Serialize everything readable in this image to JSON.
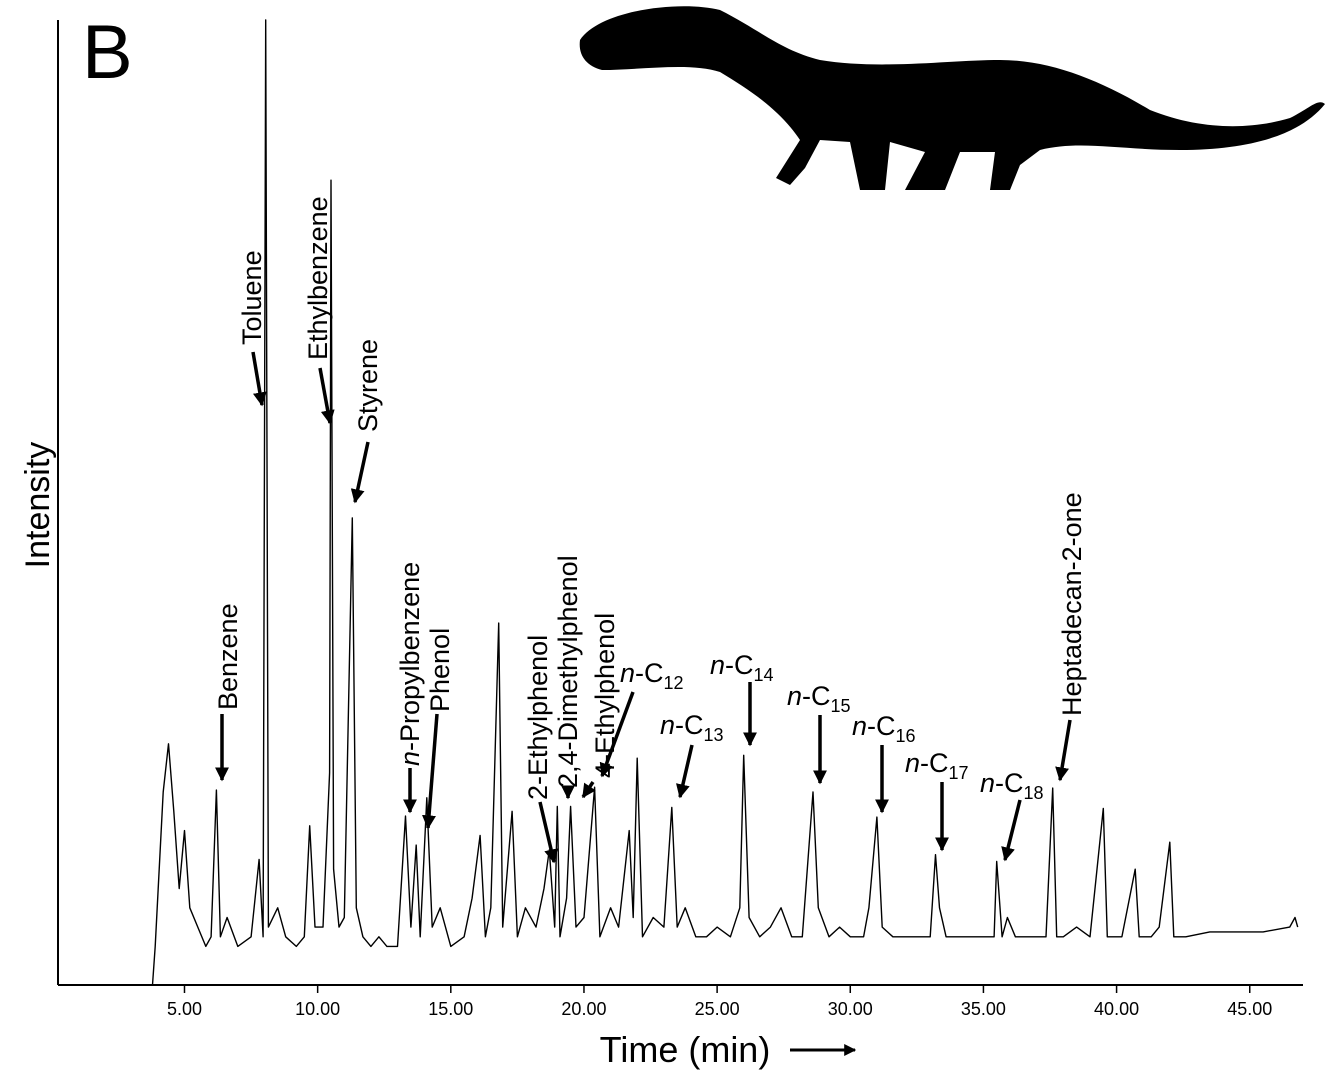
{
  "chart_data": {
    "type": "line",
    "panel_label": "B",
    "xlabel": "Time (min)",
    "ylabel": "Intensity",
    "xlim": [
      0.1,
      47
    ],
    "ylim": [
      0,
      100
    ],
    "xticks": [
      {
        "value": 5,
        "label": "5.00"
      },
      {
        "value": 10,
        "label": "10.00"
      },
      {
        "value": 15,
        "label": "15.00"
      },
      {
        "value": 20,
        "label": "20.00"
      },
      {
        "value": 25,
        "label": "25.00"
      },
      {
        "value": 30,
        "label": "30.00"
      },
      {
        "value": 35,
        "label": "35.00"
      },
      {
        "value": 40,
        "label": "40.00"
      },
      {
        "value": 45,
        "label": "45.00"
      }
    ],
    "x": [
      3.8,
      3.9,
      4.2,
      4.4,
      4.6,
      4.8,
      5.0,
      5.2,
      5.5,
      5.8,
      6.0,
      6.2,
      6.35,
      6.6,
      7.0,
      7.5,
      7.8,
      7.95,
      8.05,
      8.15,
      8.5,
      8.8,
      9.2,
      9.5,
      9.7,
      9.9,
      10.2,
      10.45,
      10.5,
      10.6,
      10.8,
      11.0,
      11.3,
      11.45,
      11.7,
      12.0,
      12.3,
      12.6,
      13.0,
      13.3,
      13.5,
      13.7,
      13.85,
      14.1,
      14.3,
      14.6,
      15.0,
      15.5,
      15.8,
      16.1,
      16.3,
      16.5,
      16.8,
      16.95,
      17.3,
      17.5,
      17.8,
      18.2,
      18.5,
      18.7,
      18.9,
      19.0,
      19.1,
      19.35,
      19.5,
      19.7,
      20.0,
      20.4,
      20.6,
      21.0,
      21.3,
      21.7,
      21.85,
      22.0,
      22.2,
      22.6,
      23.0,
      23.3,
      23.5,
      23.8,
      24.2,
      24.6,
      25.0,
      25.5,
      25.85,
      26.0,
      26.2,
      26.6,
      27.0,
      27.4,
      27.8,
      28.2,
      28.6,
      28.8,
      29.2,
      29.6,
      30.0,
      30.5,
      30.7,
      31.0,
      31.2,
      31.6,
      32.0,
      32.5,
      33.0,
      33.2,
      33.35,
      33.6,
      34.0,
      34.5,
      35.0,
      35.4,
      35.5,
      35.7,
      35.9,
      36.2,
      36.6,
      37.0,
      37.35,
      37.6,
      37.75,
      38.0,
      38.5,
      39.0,
      39.5,
      39.65,
      40.2,
      40.7,
      40.85,
      41.3,
      41.6,
      42.0,
      42.15,
      42.6,
      43.5,
      44.5,
      45.5,
      46.5,
      46.7,
      46.8
    ],
    "series": [
      {
        "color": "#000000",
        "values": [
          0,
          4,
          20,
          25,
          18,
          10,
          16,
          8,
          6,
          4,
          5,
          20.2,
          5,
          7,
          4,
          5,
          13,
          5,
          100,
          6,
          8,
          5,
          4,
          5,
          16.5,
          6,
          6,
          22,
          83.4,
          12,
          6,
          7,
          48.4,
          8,
          5,
          4,
          5,
          4,
          4,
          17.5,
          6,
          14.5,
          5,
          19.4,
          6,
          8,
          4,
          5,
          9,
          15.5,
          5,
          8,
          37.5,
          6,
          18,
          5,
          8,
          6,
          10,
          14,
          6,
          18.5,
          5,
          9,
          18.5,
          6,
          7,
          20.5,
          5,
          8,
          6,
          16,
          7,
          23.5,
          5,
          7,
          6,
          18.4,
          6,
          8,
          5,
          5,
          6,
          5,
          8,
          23.8,
          7,
          5,
          6,
          8,
          5,
          5,
          20,
          8,
          5,
          6,
          5,
          5,
          8,
          17.4,
          6,
          5,
          5,
          5,
          5,
          13.5,
          8,
          5,
          5,
          5,
          5,
          5,
          12.8,
          5,
          7,
          5,
          5,
          5,
          5,
          20.4,
          5,
          5,
          6,
          5,
          18.3,
          5,
          5,
          12,
          5,
          5,
          6,
          14.8,
          5,
          5,
          5.5,
          5.5,
          5.5,
          6,
          7,
          6
        ]
      }
    ],
    "annotations": [
      {
        "text": "Benzene"
      },
      {
        "text": "Toluene"
      },
      {
        "text": "Ethylbenzene"
      },
      {
        "text": "Styrene"
      },
      {
        "italic": "n",
        "text": "-Propylbenzene"
      },
      {
        "text": "Phenol"
      },
      {
        "text": "2-Ethylphenol"
      },
      {
        "text": "2,4-Dimethylphenol"
      },
      {
        "text": "4-Ethylphenol"
      },
      {
        "italic": "n",
        "text": "-C",
        "sub": "12"
      },
      {
        "italic": "n",
        "text": "-C",
        "sub": "13"
      },
      {
        "italic": "n",
        "text": "-C",
        "sub": "14"
      },
      {
        "italic": "n",
        "text": "-C",
        "sub": "15"
      },
      {
        "italic": "n",
        "text": "-C",
        "sub": "16"
      },
      {
        "italic": "n",
        "text": "-C",
        "sub": "17"
      },
      {
        "italic": "n",
        "text": "-C",
        "sub": "18"
      },
      {
        "text": "Heptadecan-2-one"
      }
    ]
  }
}
